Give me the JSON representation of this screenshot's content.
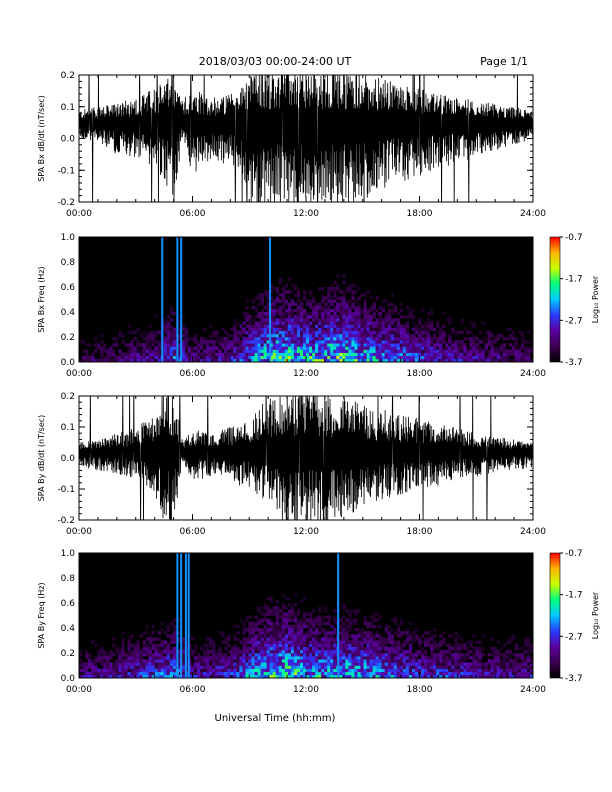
{
  "header": {
    "title": "2018/03/03  00:00-24:00 UT",
    "page": "Page 1/1"
  },
  "colors": {
    "trace": "#000000",
    "spectrogram_background": "#000000",
    "colormap": [
      "#000000",
      "#3c0050",
      "#5a00a0",
      "#2a3cff",
      "#00c8ff",
      "#00ff80",
      "#c8ff00",
      "#ffb400",
      "#ff0000"
    ]
  },
  "chart_data": [
    {
      "type": "line",
      "ylabel": "SPA Bx dB/dt (nT/sec)",
      "x_ticks": [
        "00:00",
        "06:00",
        "12:00",
        "18:00",
        "24:00"
      ],
      "y_ticks": [
        "-0.2",
        "-0.1",
        "0.0",
        "0.1",
        "0.2"
      ],
      "xlim": [
        0,
        24
      ],
      "ylim": [
        -0.2,
        0.2
      ],
      "grid": false,
      "series": [
        {
          "x": [
            0,
            1,
            2,
            3,
            4,
            5,
            5.5,
            6,
            7,
            8,
            8.5,
            9,
            9.5,
            10,
            10.5,
            11,
            11.5,
            12,
            12.5,
            13,
            13.5,
            14,
            15,
            16,
            17,
            18,
            19,
            20,
            21,
            22,
            23,
            24
          ],
          "y_max": [
            0.09,
            0.1,
            0.11,
            0.13,
            0.16,
            0.2,
            0.12,
            0.17,
            0.13,
            0.14,
            0.16,
            0.2,
            0.22,
            0.22,
            0.22,
            0.22,
            0.22,
            0.22,
            0.22,
            0.22,
            0.22,
            0.22,
            0.21,
            0.19,
            0.17,
            0.16,
            0.14,
            0.13,
            0.12,
            0.11,
            0.1,
            0.09
          ],
          "y_min": [
            0.0,
            -0.02,
            -0.05,
            -0.06,
            -0.1,
            -0.2,
            0.0,
            -0.13,
            -0.07,
            -0.09,
            -0.1,
            -0.2,
            -0.22,
            -0.22,
            -0.22,
            -0.22,
            -0.22,
            -0.22,
            -0.22,
            -0.22,
            -0.22,
            -0.22,
            -0.2,
            -0.16,
            -0.14,
            -0.12,
            -0.1,
            -0.08,
            -0.06,
            -0.04,
            -0.02,
            0.0
          ],
          "baseline": 0.05
        }
      ]
    },
    {
      "type": "heatmap",
      "ylabel": "SPA Bx Freq (Hz)",
      "x_ticks": [
        "00:00",
        "06:00",
        "12:00",
        "18:00",
        "24:00"
      ],
      "y_ticks": [
        "0.0",
        "0.2",
        "0.4",
        "0.6",
        "0.8",
        "1.0"
      ],
      "xlim": [
        0,
        24
      ],
      "ylim": [
        0,
        1
      ],
      "colorbar": {
        "label": "Log₁₀ Power",
        "ticks": [
          "-0.7",
          "-1.7",
          "-2.7",
          "-3.7"
        ],
        "range": [
          -3.7,
          -0.7
        ]
      },
      "activity": {
        "x": [
          0,
          2,
          4,
          5,
          6,
          8,
          9,
          10,
          11,
          12,
          13,
          14,
          15,
          16,
          18,
          20,
          22,
          24
        ],
        "level": [
          0.35,
          0.4,
          0.5,
          0.65,
          0.45,
          0.5,
          0.7,
          0.85,
          0.9,
          0.8,
          0.85,
          0.9,
          0.8,
          0.75,
          0.6,
          0.5,
          0.45,
          0.4
        ]
      },
      "vertical_streaks": [
        4.4,
        5.2,
        5.4,
        10.1
      ]
    },
    {
      "type": "line",
      "ylabel": "SPA By dB/dt (nT/sec)",
      "x_ticks": [
        "00:00",
        "06:00",
        "12:00",
        "18:00",
        "24:00"
      ],
      "y_ticks": [
        "-0.2",
        "-0.1",
        "0.0",
        "0.1",
        "0.2"
      ],
      "xlim": [
        0,
        24
      ],
      "ylim": [
        -0.2,
        0.2
      ],
      "grid": false,
      "series": [
        {
          "x": [
            0,
            1,
            2,
            3,
            4,
            4.5,
            5,
            5.5,
            6,
            7,
            8,
            9,
            10,
            10.5,
            11,
            11.5,
            12,
            12.5,
            13,
            13.5,
            14,
            15,
            16,
            17,
            18,
            19,
            20,
            21,
            22,
            23,
            24
          ],
          "y_max": [
            0.05,
            0.06,
            0.08,
            0.1,
            0.14,
            0.22,
            0.22,
            0.05,
            0.1,
            0.08,
            0.1,
            0.12,
            0.2,
            0.22,
            0.22,
            0.22,
            0.22,
            0.22,
            0.22,
            0.2,
            0.2,
            0.18,
            0.16,
            0.14,
            0.13,
            0.12,
            0.1,
            0.08,
            0.07,
            0.06,
            0.05
          ],
          "y_min": [
            -0.03,
            -0.04,
            -0.06,
            -0.08,
            -0.12,
            -0.22,
            -0.22,
            -0.02,
            -0.08,
            -0.06,
            -0.08,
            -0.1,
            -0.16,
            -0.2,
            -0.22,
            -0.22,
            -0.22,
            -0.22,
            -0.22,
            -0.2,
            -0.2,
            -0.16,
            -0.14,
            -0.12,
            -0.1,
            -0.09,
            -0.07,
            -0.06,
            -0.05,
            -0.04,
            -0.03
          ],
          "baseline": 0.02
        }
      ]
    },
    {
      "type": "heatmap",
      "ylabel": "SPA By Freq (Hz)",
      "x_ticks": [
        "00:00",
        "06:00",
        "12:00",
        "18:00",
        "24:00"
      ],
      "y_ticks": [
        "0.0",
        "0.2",
        "0.4",
        "0.6",
        "0.8",
        "1.0"
      ],
      "xlim": [
        0,
        24
      ],
      "ylim": [
        0,
        1
      ],
      "colorbar": {
        "label": "Log₁₀ Power",
        "ticks": [
          "-0.7",
          "-1.7",
          "-2.7",
          "-3.7"
        ],
        "range": [
          -3.7,
          -0.7
        ]
      },
      "activity": {
        "x": [
          0,
          2,
          4,
          5,
          6,
          8,
          9,
          10,
          11,
          12,
          13,
          14,
          15,
          16,
          18,
          20,
          22,
          24
        ],
        "level": [
          0.45,
          0.5,
          0.6,
          0.7,
          0.5,
          0.55,
          0.7,
          0.85,
          0.9,
          0.8,
          0.75,
          0.8,
          0.75,
          0.7,
          0.6,
          0.55,
          0.5,
          0.5
        ]
      },
      "vertical_streaks": [
        5.2,
        5.4,
        5.65,
        5.8,
        13.7
      ]
    }
  ],
  "footer": {
    "xlabel": "Universal Time (hh:mm)"
  }
}
